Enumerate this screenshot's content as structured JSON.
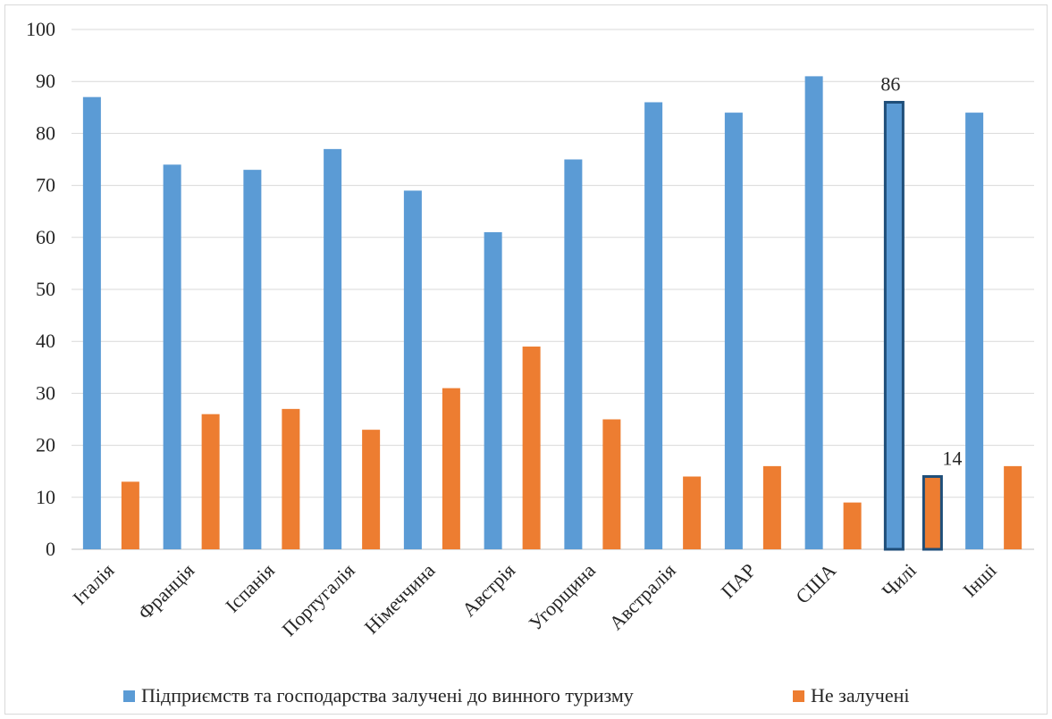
{
  "chart_data": {
    "type": "bar",
    "title": "",
    "xlabel": "",
    "ylabel": "",
    "ylim": [
      0,
      100
    ],
    "yticks": [
      0,
      10,
      20,
      30,
      40,
      50,
      60,
      70,
      80,
      90,
      100
    ],
    "grid": true,
    "legend_position": "bottom",
    "categories": [
      "Італія",
      "Франція",
      "Іспанія",
      "Португалія",
      "Німеччина",
      "Австрія",
      "Угорщина",
      "Австралія",
      "ПАР",
      "США",
      "Чилі",
      "Інші"
    ],
    "series": [
      {
        "name": "Підприємств та господарства залучені до винного туризму",
        "color": "#5b9bd5",
        "values": [
          87,
          74,
          73,
          77,
          69,
          61,
          75,
          86,
          84,
          91,
          86,
          84
        ]
      },
      {
        "name": "Не залучені",
        "color": "#ed7d31",
        "values": [
          13,
          26,
          27,
          23,
          31,
          39,
          25,
          14,
          16,
          9,
          14,
          16
        ]
      }
    ],
    "highlight": {
      "category": "Чилі",
      "outline_color": "#1f4e79",
      "data_labels": [
        "86",
        "14"
      ]
    }
  }
}
